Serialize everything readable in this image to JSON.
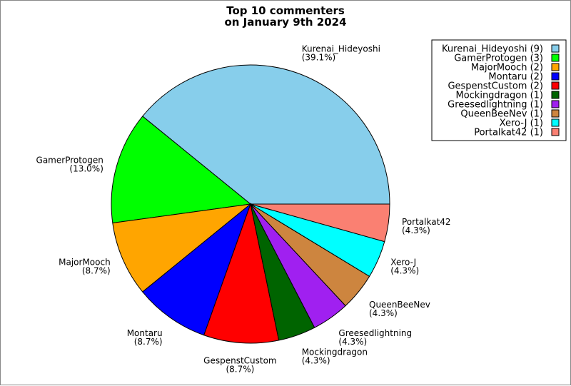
{
  "chart_data": {
    "type": "pie",
    "title_lines": [
      "Top 10 commenters",
      "on January 9th 2024"
    ],
    "slices": [
      {
        "name": "Kurenai_Hideyoshi",
        "value": 9,
        "percent": "(39.1%)",
        "legend": "Kurenai_Hideyoshi (9)",
        "color": "#87ceeb"
      },
      {
        "name": "GamerProtogen",
        "value": 3,
        "percent": "(13.0%)",
        "legend": "GamerProtogen (3)",
        "color": "#00ff00"
      },
      {
        "name": "MajorMooch",
        "value": 2,
        "percent": "(8.7%)",
        "legend": "MajorMooch (2)",
        "color": "#ffa500"
      },
      {
        "name": "Montaru",
        "value": 2,
        "percent": "(8.7%)",
        "legend": "Montaru (2)",
        "color": "#0000ff"
      },
      {
        "name": "GespenstCustom",
        "value": 2,
        "percent": "(8.7%)",
        "legend": "GespenstCustom (2)",
        "color": "#ff0000"
      },
      {
        "name": "Mockingdragon",
        "value": 1,
        "percent": "(4.3%)",
        "legend": "Mockingdragon (1)",
        "color": "#006400"
      },
      {
        "name": "Greesedlightning",
        "value": 1,
        "percent": "(4.3%)",
        "legend": "Greesedlightning (1)",
        "color": "#a020f0"
      },
      {
        "name": "QueenBeeNev",
        "value": 1,
        "percent": "(4.3%)",
        "legend": "QueenBeeNev (1)",
        "color": "#cd853f"
      },
      {
        "name": "Xero-J",
        "value": 1,
        "percent": "(4.3%)",
        "legend": "Xero-J (1)",
        "color": "#00ffff"
      },
      {
        "name": "Portalkat42",
        "value": 1,
        "percent": "(4.3%)",
        "legend": "Portalkat42 (1)",
        "color": "#fa8072"
      }
    ],
    "legend_position": "top-right",
    "start": "3 o'clock",
    "direction": "counterclockwise"
  }
}
